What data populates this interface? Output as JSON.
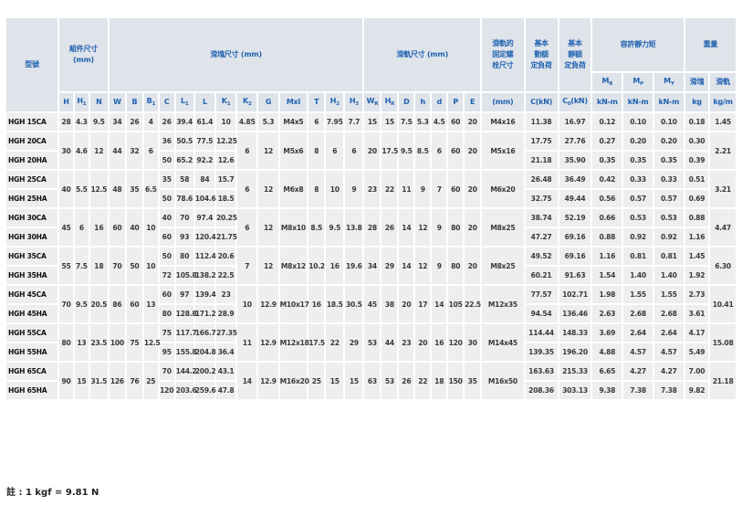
{
  "table": {
    "headers": [
      {
        "lines": [
          "型號"
        ]
      },
      {
        "lines": [
          "組件尺寸",
          "(mm)"
        ]
      },
      {
        "lines": [
          "滑塊尺寸 (mm)"
        ]
      },
      {
        "lines": [
          "滑軌尺寸 (mm)"
        ]
      },
      {
        "lines": [
          "滑軌的",
          "固定螺",
          "栓尺寸"
        ]
      },
      {
        "lines": [
          "基本",
          "動額",
          "定負荷"
        ]
      },
      {
        "lines": [
          "基本",
          "靜額",
          "定負荷"
        ]
      },
      {
        "lines": [
          "容許靜力矩"
        ]
      },
      {
        "lines": [
          "重量"
        ]
      }
    ],
    "subheaders": [
      {
        "main": "M",
        "sub": "R"
      },
      {
        "main": "M",
        "sub": "P"
      },
      {
        "main": "M",
        "sub": "Y"
      },
      {
        "main": "滑塊"
      },
      {
        "main": "滑軌"
      }
    ],
    "columns": [
      {
        "main": "H"
      },
      {
        "main": "H",
        "sub": "1"
      },
      {
        "main": "N"
      },
      {
        "main": "W"
      },
      {
        "main": "B"
      },
      {
        "main": "B",
        "sub": "1"
      },
      {
        "main": "C"
      },
      {
        "main": "L",
        "sub": "1"
      },
      {
        "main": "L"
      },
      {
        "main": "K",
        "sub": "1"
      },
      {
        "main": "K",
        "sub": "2"
      },
      {
        "main": "G"
      },
      {
        "main": "Mxl"
      },
      {
        "main": "T"
      },
      {
        "main": "H",
        "sub": "2"
      },
      {
        "main": "H",
        "sub": "3"
      },
      {
        "main": "W",
        "sub": "R"
      },
      {
        "main": "H",
        "sub": "R"
      },
      {
        "main": "D"
      },
      {
        "main": "h"
      },
      {
        "main": "d"
      },
      {
        "main": "P"
      },
      {
        "main": "E"
      },
      {
        "main": "(mm)"
      },
      {
        "main": "C(kN)"
      },
      {
        "main": "C",
        "sub": "0",
        "after": "(kN)"
      },
      {
        "main": "kN-m"
      },
      {
        "main": "kN-m"
      },
      {
        "main": "kN-m"
      },
      {
        "main": "kg"
      },
      {
        "main": "kg/m"
      }
    ],
    "rows": [
      [
        "HGH 15CA",
        "28",
        "4.3",
        "9.5",
        "34",
        "26",
        "4",
        "26",
        "39.4",
        "61.4",
        "10",
        "4.85",
        "5.3",
        "M4x5",
        "6",
        "7.95",
        "7.7",
        "15",
        "15",
        "7.5",
        "5.3",
        "4.5",
        "60",
        "20",
        "M4x16",
        "11.38",
        "16.97",
        "0.12",
        "0.10",
        "0.10",
        "0.18",
        "1.45"
      ],
      [
        "HGH 20CA",
        "30",
        "4.6",
        "12",
        "44",
        "32",
        "6",
        "36",
        "50.5",
        "77.5",
        "12.25",
        "6",
        "12",
        "M5x6",
        "8",
        "6",
        "6",
        "20",
        "17.5",
        "9.5",
        "8.5",
        "6",
        "60",
        "20",
        "M5x16",
        "17.75",
        "27.76",
        "0.27",
        "0.20",
        "0.20",
        "0.30",
        "2.21"
      ],
      [
        "HGH 20HA",
        null,
        null,
        null,
        null,
        null,
        null,
        "50",
        "65.2",
        "92.2",
        "12.6",
        null,
        null,
        null,
        null,
        null,
        null,
        null,
        null,
        null,
        null,
        null,
        null,
        null,
        null,
        "21.18",
        "35.90",
        "0.35",
        "0.35",
        "0.35",
        "0.39",
        null
      ],
      [
        "HGH 25CA",
        "40",
        "5.5",
        "12.5",
        "48",
        "35",
        "6.5",
        "35",
        "58",
        "84",
        "15.7",
        "6",
        "12",
        "M6x8",
        "8",
        "10",
        "9",
        "23",
        "22",
        "11",
        "9",
        "7",
        "60",
        "20",
        "M6x20",
        "26.48",
        "36.49",
        "0.42",
        "0.33",
        "0.33",
        "0.51",
        "3.21"
      ],
      [
        "HGH 25HA",
        null,
        null,
        null,
        null,
        null,
        null,
        "50",
        "78.6",
        "104.6",
        "18.5",
        null,
        null,
        null,
        null,
        null,
        null,
        null,
        null,
        null,
        null,
        null,
        null,
        null,
        null,
        "32.75",
        "49.44",
        "0.56",
        "0.57",
        "0.57",
        "0.69",
        null
      ],
      [
        "HGH 30CA",
        "45",
        "6",
        "16",
        "60",
        "40",
        "10",
        "40",
        "70",
        "97.4",
        "20.25",
        "6",
        "12",
        "M8x10",
        "8.5",
        "9.5",
        "13.8",
        "28",
        "26",
        "14",
        "12",
        "9",
        "80",
        "20",
        "M8x25",
        "38.74",
        "52.19",
        "0.66",
        "0.53",
        "0.53",
        "0.88",
        "4.47"
      ],
      [
        "HGH 30HA",
        null,
        null,
        null,
        null,
        null,
        null,
        "60",
        "93",
        "120.4",
        "21.75",
        null,
        null,
        null,
        null,
        null,
        null,
        null,
        null,
        null,
        null,
        null,
        null,
        null,
        null,
        "47.27",
        "69.16",
        "0.88",
        "0.92",
        "0.92",
        "1.16",
        null
      ],
      [
        "HGH 35CA",
        "55",
        "7.5",
        "18",
        "70",
        "50",
        "10",
        "50",
        "80",
        "112.4",
        "20.6",
        "7",
        "12",
        "M8x12",
        "10.2",
        "16",
        "19.6",
        "34",
        "29",
        "14",
        "12",
        "9",
        "80",
        "20",
        "M8x25",
        "49.52",
        "69.16",
        "1.16",
        "0.81",
        "0.81",
        "1.45",
        "6.30"
      ],
      [
        "HGH 35HA",
        null,
        null,
        null,
        null,
        null,
        null,
        "72",
        "105.8",
        "138.2",
        "22.5",
        null,
        null,
        null,
        null,
        null,
        null,
        null,
        null,
        null,
        null,
        null,
        null,
        null,
        null,
        "60.21",
        "91.63",
        "1.54",
        "1.40",
        "1.40",
        "1.92",
        null
      ],
      [
        "HGH 45CA",
        "70",
        "9.5",
        "20.5",
        "86",
        "60",
        "13",
        "60",
        "97",
        "139.4",
        "23",
        "10",
        "12.9",
        "M10x17",
        "16",
        "18.5",
        "30.5",
        "45",
        "38",
        "20",
        "17",
        "14",
        "105",
        "22.5",
        "M12x35",
        "77.57",
        "102.71",
        "1.98",
        "1.55",
        "1.55",
        "2.73",
        "10.41"
      ],
      [
        "HGH 45HA",
        null,
        null,
        null,
        null,
        null,
        null,
        "80",
        "128.8",
        "171.2",
        "28.9",
        null,
        null,
        null,
        null,
        null,
        null,
        null,
        null,
        null,
        null,
        null,
        null,
        null,
        null,
        "94.54",
        "136.46",
        "2.63",
        "2.68",
        "2.68",
        "3.61",
        null
      ],
      [
        "HGH 55CA",
        "80",
        "13",
        "23.5",
        "100",
        "75",
        "12.5",
        "75",
        "117.7",
        "166.7",
        "27.35",
        "11",
        "12.9",
        "M12x18",
        "17.5",
        "22",
        "29",
        "53",
        "44",
        "23",
        "20",
        "16",
        "120",
        "30",
        "M14x45",
        "114.44",
        "148.33",
        "3.69",
        "2.64",
        "2.64",
        "4.17",
        "15.08"
      ],
      [
        "HGH 55HA",
        null,
        null,
        null,
        null,
        null,
        null,
        "95",
        "155.8",
        "204.8",
        "36.4",
        null,
        null,
        null,
        null,
        null,
        null,
        null,
        null,
        null,
        null,
        null,
        null,
        null,
        null,
        "139.35",
        "196.20",
        "4.88",
        "4.57",
        "4.57",
        "5.49",
        null
      ],
      [
        "HGH 65CA",
        "90",
        "15",
        "31.5",
        "126",
        "76",
        "25",
        "70",
        "144.2",
        "200.2",
        "43.1",
        "14",
        "12.9",
        "M16x20",
        "25",
        "15",
        "15",
        "63",
        "53",
        "26",
        "22",
        "18",
        "150",
        "35",
        "M16x50",
        "163.63",
        "215.33",
        "6.65",
        "4.27",
        "4.27",
        "7.00",
        "21.18"
      ],
      [
        "HGH 65HA",
        null,
        null,
        null,
        null,
        null,
        null,
        "120",
        "203.6",
        "259.6",
        "47.8",
        null,
        null,
        null,
        null,
        null,
        null,
        null,
        null,
        null,
        null,
        null,
        null,
        null,
        null,
        "208.36",
        "303.13",
        "9.38",
        "7.38",
        "7.38",
        "9.82",
        null
      ]
    ]
  },
  "note": "註 : 1 kgf = 9.81 N"
}
